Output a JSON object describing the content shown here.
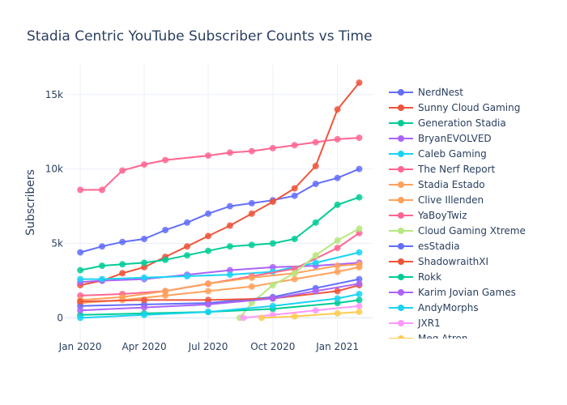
{
  "chart_data": {
    "type": "line",
    "title": "Stadia Centric YouTube Subscriber Counts vs Time",
    "xlabel": "",
    "ylabel": "Subscribers",
    "x_ticks": [
      {
        "date": "2020-01-01",
        "label": "Jan 2020"
      },
      {
        "date": "2020-04-01",
        "label": "Apr 2020"
      },
      {
        "date": "2020-07-01",
        "label": "Jul 2020"
      },
      {
        "date": "2020-10-01",
        "label": "Oct 2020"
      },
      {
        "date": "2021-01-01",
        "label": "Jan 2021"
      }
    ],
    "y_ticks": [
      {
        "value": 0,
        "label": "0"
      },
      {
        "value": 5000,
        "label": "5k"
      },
      {
        "value": 10000,
        "label": "10k"
      },
      {
        "value": 15000,
        "label": "15k"
      }
    ],
    "xlim": [
      "2019-12-10",
      "2021-02-20"
    ],
    "ylim": [
      -1500,
      17000
    ],
    "grid": true,
    "legend_position": "right",
    "series": [
      {
        "name": "NerdNest",
        "color": "#636efa",
        "points": [
          [
            "2020-01-01",
            4400
          ],
          [
            "2020-02-01",
            4800
          ],
          [
            "2020-03-01",
            5100
          ],
          [
            "2020-04-01",
            5300
          ],
          [
            "2020-05-01",
            5900
          ],
          [
            "2020-06-01",
            6400
          ],
          [
            "2020-07-01",
            7000
          ],
          [
            "2020-08-01",
            7500
          ],
          [
            "2020-09-01",
            7700
          ],
          [
            "2020-10-01",
            7900
          ],
          [
            "2020-11-01",
            8200
          ],
          [
            "2020-12-01",
            9000
          ],
          [
            "2021-01-01",
            9400
          ],
          [
            "2021-02-01",
            10000
          ]
        ]
      },
      {
        "name": "Sunny Cloud Gaming",
        "color": "#ef553b",
        "points": [
          [
            "2020-01-01",
            2200
          ],
          [
            "2020-02-01",
            2500
          ],
          [
            "2020-03-01",
            3000
          ],
          [
            "2020-04-01",
            3400
          ],
          [
            "2020-05-01",
            4100
          ],
          [
            "2020-06-01",
            4800
          ],
          [
            "2020-07-01",
            5500
          ],
          [
            "2020-08-01",
            6200
          ],
          [
            "2020-09-01",
            7000
          ],
          [
            "2020-10-01",
            7800
          ],
          [
            "2020-11-01",
            8700
          ],
          [
            "2020-12-01",
            10200
          ],
          [
            "2021-01-01",
            14000
          ],
          [
            "2021-02-01",
            15800
          ]
        ]
      },
      {
        "name": "Generation Stadia",
        "color": "#00cc96",
        "points": [
          [
            "2020-01-01",
            3200
          ],
          [
            "2020-02-01",
            3500
          ],
          [
            "2020-03-01",
            3600
          ],
          [
            "2020-04-01",
            3700
          ],
          [
            "2020-05-01",
            3900
          ],
          [
            "2020-06-01",
            4200
          ],
          [
            "2020-07-01",
            4500
          ],
          [
            "2020-08-01",
            4800
          ],
          [
            "2020-09-01",
            4900
          ],
          [
            "2020-10-01",
            5000
          ],
          [
            "2020-11-01",
            5300
          ],
          [
            "2020-12-01",
            6400
          ],
          [
            "2021-01-01",
            7600
          ],
          [
            "2021-02-01",
            8100
          ]
        ]
      },
      {
        "name": "BryanEVOLVED",
        "color": "#ab63fa",
        "points": [
          [
            "2020-01-01",
            2400
          ],
          [
            "2020-02-01",
            2500
          ],
          [
            "2020-04-01",
            2600
          ],
          [
            "2020-06-01",
            2900
          ],
          [
            "2020-08-01",
            3200
          ],
          [
            "2020-10-01",
            3400
          ],
          [
            "2020-12-01",
            3500
          ],
          [
            "2021-02-01",
            3700
          ]
        ]
      },
      {
        "name": "Caleb Gaming",
        "color": "#19d3f3",
        "points": [
          [
            "2020-01-01",
            2600
          ],
          [
            "2020-02-01",
            2600
          ],
          [
            "2020-04-01",
            2700
          ],
          [
            "2020-06-01",
            2800
          ],
          [
            "2020-08-01",
            2900
          ],
          [
            "2020-10-01",
            3100
          ],
          [
            "2020-12-01",
            3700
          ],
          [
            "2021-02-01",
            4400
          ]
        ]
      },
      {
        "name": "The Nerf Report",
        "color": "#ff6692",
        "points": [
          [
            "2020-01-01",
            1500
          ],
          [
            "2020-03-01",
            1600
          ],
          [
            "2020-05-01",
            1800
          ],
          [
            "2020-07-01",
            2300
          ],
          [
            "2020-09-01",
            2800
          ],
          [
            "2020-11-01",
            3300
          ],
          [
            "2021-01-01",
            4700
          ],
          [
            "2021-02-01",
            5700
          ]
        ]
      },
      {
        "name": "Stadia Estado",
        "color": "#ffa15a",
        "points": [
          [
            "2020-01-01",
            1200
          ],
          [
            "2020-03-01",
            1400
          ],
          [
            "2020-05-01",
            1800
          ],
          [
            "2020-07-01",
            2300
          ],
          [
            "2020-09-01",
            2700
          ],
          [
            "2020-11-01",
            3000
          ],
          [
            "2021-01-01",
            3500
          ],
          [
            "2021-02-01",
            3600
          ]
        ]
      },
      {
        "name": "Clive Illenden",
        "color": "#ffa15a",
        "points": [
          [
            "2020-01-01",
            1000
          ],
          [
            "2020-03-01",
            1200
          ],
          [
            "2020-05-01",
            1500
          ],
          [
            "2020-07-01",
            1800
          ],
          [
            "2020-09-01",
            2100
          ],
          [
            "2020-11-01",
            2600
          ],
          [
            "2021-01-01",
            3100
          ],
          [
            "2021-02-01",
            3400
          ]
        ]
      },
      {
        "name": "YaBoyTwiz",
        "color": "#ff6692",
        "points": [
          [
            "2020-01-01",
            8600
          ],
          [
            "2020-02-01",
            8600
          ],
          [
            "2020-03-01",
            9900
          ],
          [
            "2020-04-01",
            10300
          ],
          [
            "2020-05-01",
            10600
          ],
          [
            "2020-07-01",
            10900
          ],
          [
            "2020-08-01",
            11100
          ],
          [
            "2020-09-01",
            11200
          ],
          [
            "2020-10-01",
            11400
          ],
          [
            "2020-11-01",
            11600
          ],
          [
            "2020-12-01",
            11800
          ],
          [
            "2021-01-01",
            12000
          ],
          [
            "2021-02-01",
            12100
          ]
        ]
      },
      {
        "name": "Cloud Gaming Xtreme",
        "color": "#b6e880",
        "points": [
          [
            "2020-08-15",
            0
          ],
          [
            "2020-09-01",
            1000
          ],
          [
            "2020-10-01",
            2200
          ],
          [
            "2020-11-01",
            3000
          ],
          [
            "2020-12-01",
            4200
          ],
          [
            "2021-01-01",
            5200
          ],
          [
            "2021-02-01",
            6000
          ]
        ]
      },
      {
        "name": "esStadia",
        "color": "#636efa",
        "points": [
          [
            "2020-01-01",
            800
          ],
          [
            "2020-04-01",
            900
          ],
          [
            "2020-07-01",
            1000
          ],
          [
            "2020-10-01",
            1400
          ],
          [
            "2020-12-01",
            2000
          ],
          [
            "2021-02-01",
            2600
          ]
        ]
      },
      {
        "name": "ShadowraithXI",
        "color": "#ef553b",
        "points": [
          [
            "2020-01-01",
            1100
          ],
          [
            "2020-04-01",
            1200
          ],
          [
            "2020-07-01",
            1200
          ],
          [
            "2020-10-01",
            1300
          ],
          [
            "2021-01-01",
            1800
          ],
          [
            "2021-02-01",
            2200
          ]
        ]
      },
      {
        "name": "Rokk",
        "color": "#00cc96",
        "points": [
          [
            "2020-01-01",
            200
          ],
          [
            "2020-04-01",
            300
          ],
          [
            "2020-07-01",
            400
          ],
          [
            "2020-10-01",
            600
          ],
          [
            "2021-01-01",
            1000
          ],
          [
            "2021-02-01",
            1200
          ]
        ]
      },
      {
        "name": "Karim Jovian Games",
        "color": "#ab63fa",
        "points": [
          [
            "2020-01-01",
            500
          ],
          [
            "2020-04-01",
            700
          ],
          [
            "2020-07-01",
            900
          ],
          [
            "2020-10-01",
            1300
          ],
          [
            "2020-12-01",
            1800
          ],
          [
            "2021-02-01",
            2300
          ]
        ]
      },
      {
        "name": "AndyMorphs",
        "color": "#19d3f3",
        "points": [
          [
            "2020-01-01",
            0
          ],
          [
            "2020-04-01",
            200
          ],
          [
            "2020-07-01",
            400
          ],
          [
            "2020-10-01",
            800
          ],
          [
            "2021-01-01",
            1300
          ],
          [
            "2021-02-01",
            1600
          ]
        ]
      },
      {
        "name": "JXR1",
        "color": "#ff97ff",
        "points": [
          [
            "2020-08-20",
            0
          ],
          [
            "2020-10-01",
            200
          ],
          [
            "2020-12-01",
            500
          ],
          [
            "2021-02-01",
            800
          ]
        ]
      },
      {
        "name": "Meg Atron",
        "color": "#fecb52",
        "points": [
          [
            "2020-09-15",
            0
          ],
          [
            "2020-11-01",
            100
          ],
          [
            "2021-01-01",
            300
          ],
          [
            "2021-02-01",
            400
          ]
        ]
      }
    ]
  }
}
